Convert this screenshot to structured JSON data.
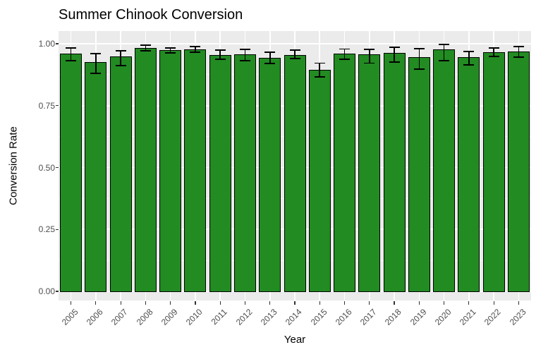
{
  "chart_data": {
    "type": "bar",
    "title": "Summer Chinook Conversion",
    "xlabel": "Year",
    "ylabel": "Conversion Rate",
    "ylim": [
      0,
      1.05
    ],
    "yticks": [
      0,
      0.25,
      0.5,
      0.75,
      1.0
    ],
    "ytick_labels": [
      "0.00",
      "0.25",
      "0.50",
      "0.75",
      "1.00"
    ],
    "categories": [
      "2005",
      "2006",
      "2007",
      "2008",
      "2009",
      "2010",
      "2011",
      "2012",
      "2013",
      "2014",
      "2015",
      "2016",
      "2017",
      "2018",
      "2019",
      "2020",
      "2021",
      "2022",
      "2023"
    ],
    "values": [
      0.96,
      0.925,
      0.948,
      0.982,
      0.973,
      0.977,
      0.955,
      0.957,
      0.943,
      0.955,
      0.896,
      0.961,
      0.956,
      0.962,
      0.946,
      0.976,
      0.947,
      0.966,
      0.969
    ],
    "error_low": [
      0.932,
      0.881,
      0.912,
      0.972,
      0.963,
      0.966,
      0.938,
      0.932,
      0.92,
      0.94,
      0.866,
      0.937,
      0.922,
      0.926,
      0.898,
      0.931,
      0.914,
      0.949,
      0.946
    ],
    "error_high": [
      0.983,
      0.96,
      0.971,
      0.994,
      0.983,
      0.989,
      0.974,
      0.977,
      0.966,
      0.974,
      0.922,
      0.979,
      0.977,
      0.986,
      0.98,
      0.997,
      0.969,
      0.983,
      0.989
    ],
    "legend": "none",
    "grid": "on",
    "error_bars": true,
    "colors": {
      "bar_fill": "#228B22",
      "bar_stroke": "#000000",
      "panel_bg": "#EBEBEB",
      "grid_major": "#FFFFFF",
      "grid_minor": "#F7F7F7",
      "axis_text": "#4D4D4D",
      "tick_mark": "#333333",
      "title_text": "#000000"
    }
  }
}
